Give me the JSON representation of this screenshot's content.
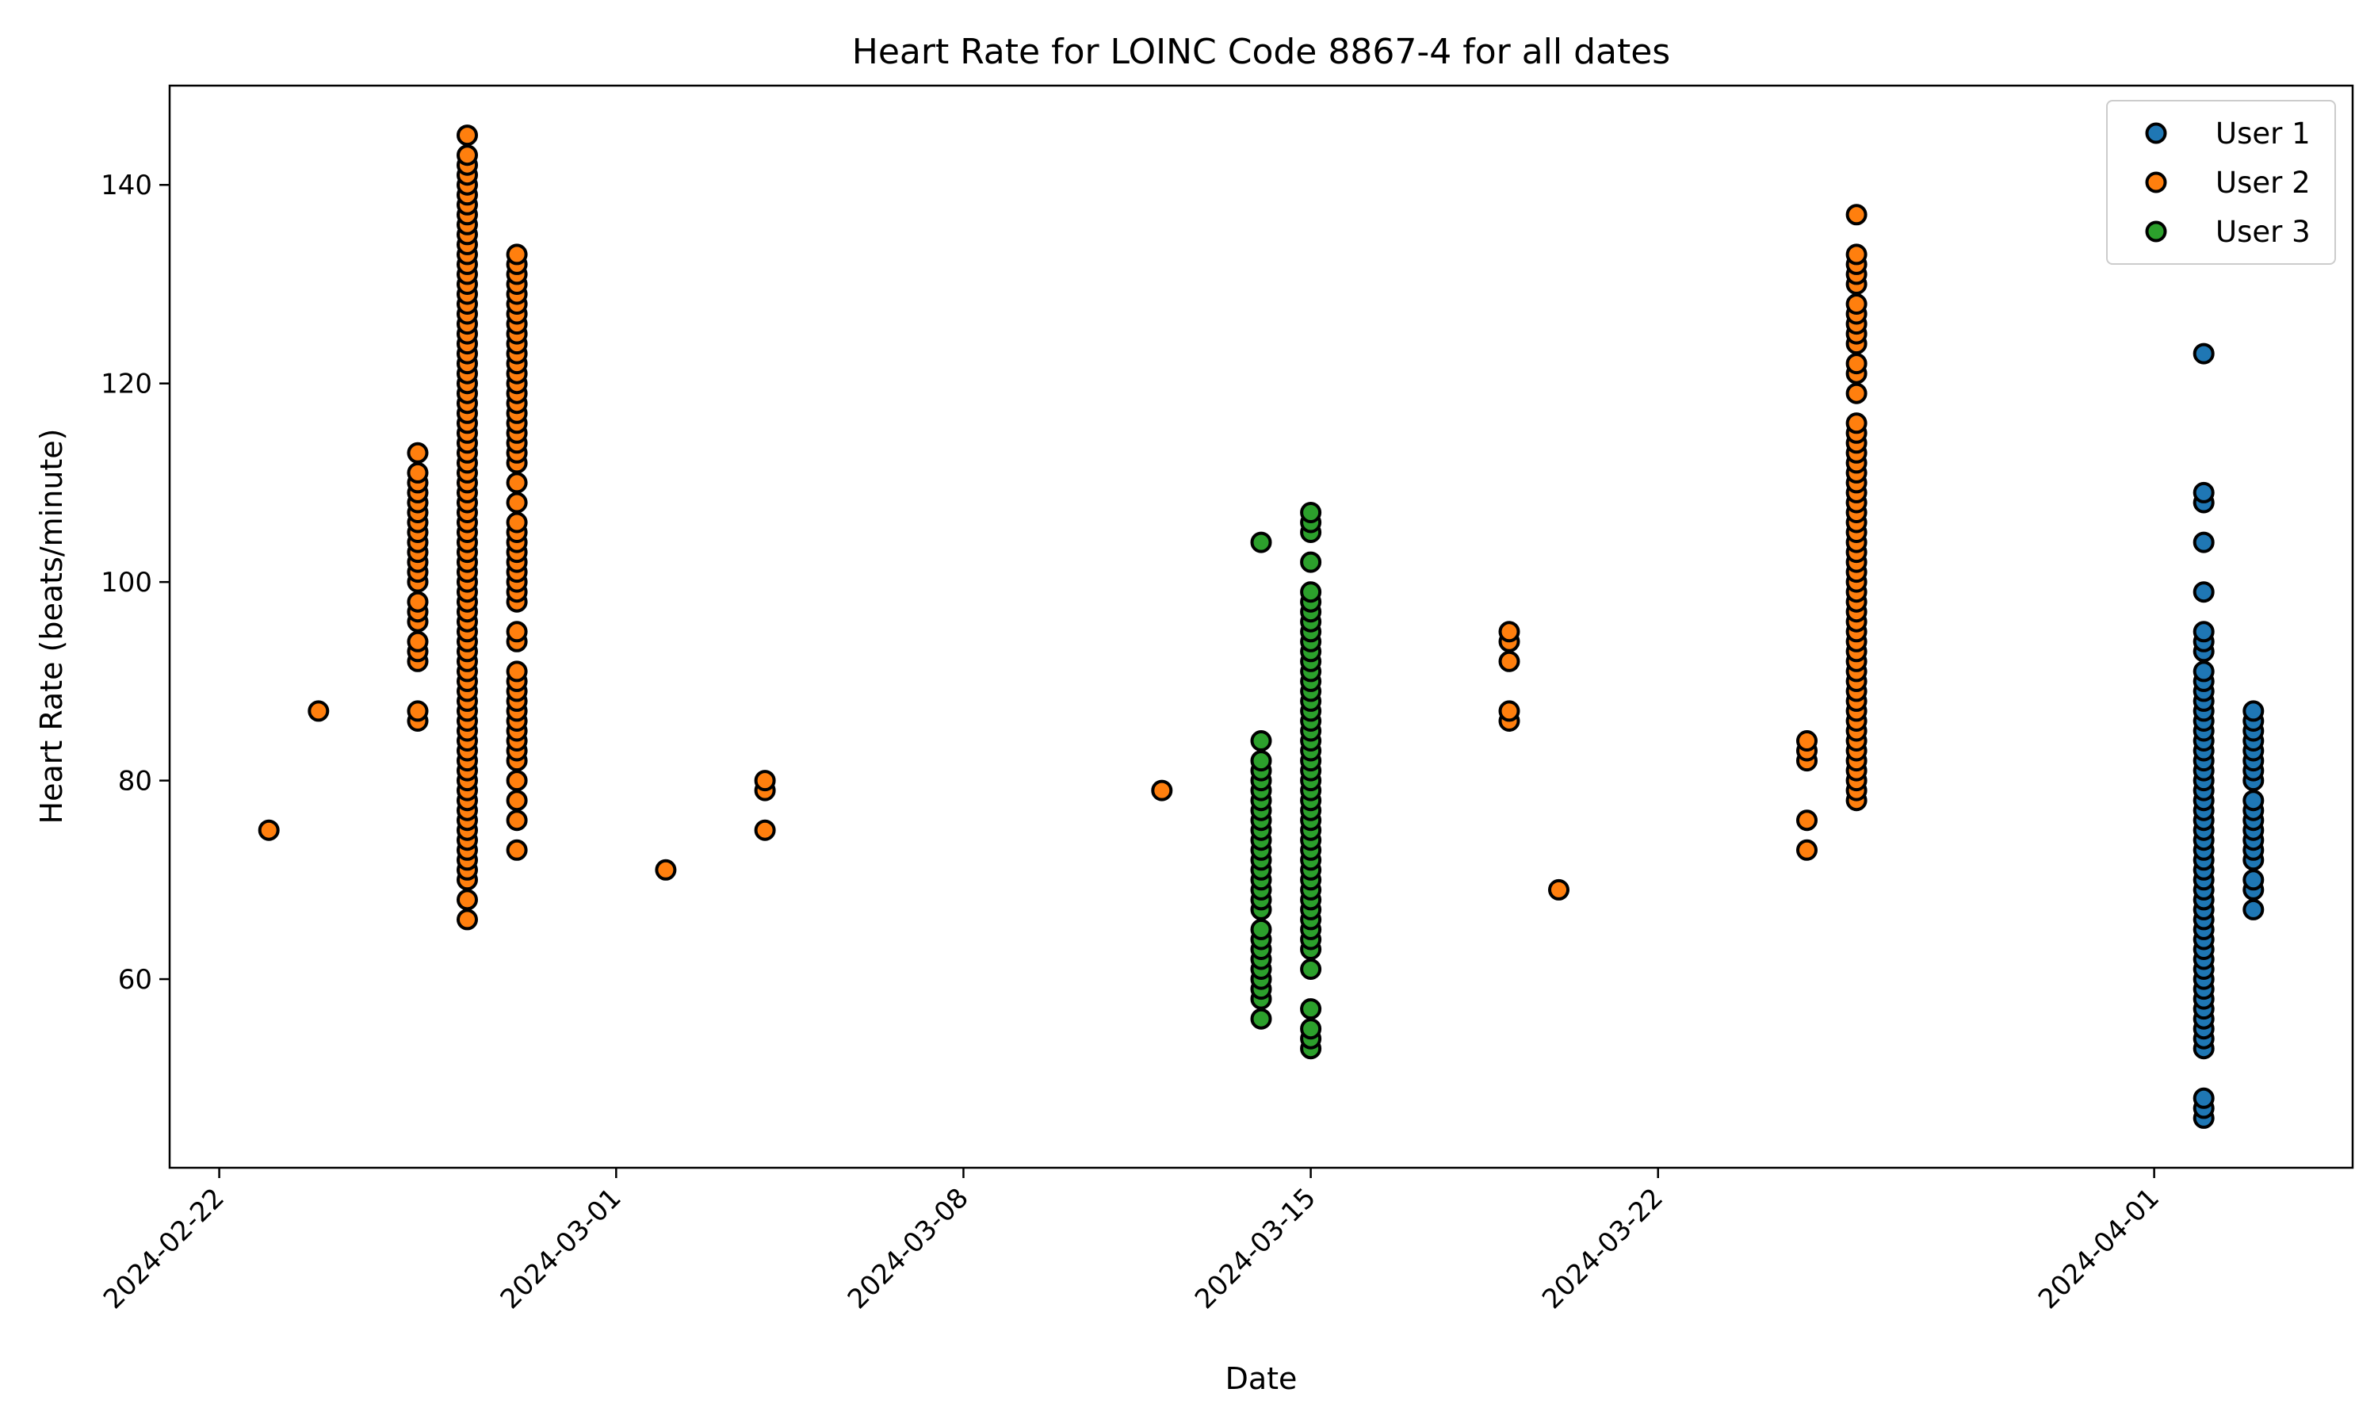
{
  "chart_data": {
    "type": "scatter",
    "title": "Heart Rate for LOINC Code 8867-4 for all dates",
    "xlabel": "Date",
    "ylabel": "Heart Rate (beats/minute)",
    "xlim": [
      "2024-02-21",
      "2024-04-05"
    ],
    "ylim": [
      41,
      150
    ],
    "x_ticks": [
      "2024-02-22",
      "2024-03-01",
      "2024-03-08",
      "2024-03-15",
      "2024-03-22",
      "2024-04-01"
    ],
    "y_ticks": [
      60,
      80,
      100,
      120,
      140
    ],
    "grid": false,
    "legend": "top-right",
    "series": [
      {
        "name": "User 1",
        "color": "#1f77b4",
        "points": [
          [
            "2024-04-02",
            [
              46,
              47,
              48,
              53,
              54,
              55,
              56,
              57,
              58,
              59,
              60,
              61,
              62,
              63,
              64,
              65,
              66,
              67,
              68,
              69,
              70,
              71,
              72,
              73,
              74,
              75,
              76,
              77,
              78,
              79,
              80,
              81,
              82,
              83,
              84,
              85,
              86,
              87,
              88,
              89,
              90,
              91,
              93,
              94,
              95,
              99,
              104,
              108,
              109,
              123
            ]
          ],
          [
            "2024-04-03",
            [
              67,
              69,
              70,
              72,
              73,
              74,
              75,
              76,
              77,
              78,
              80,
              81,
              82,
              83,
              84,
              85,
              86,
              87
            ]
          ]
        ]
      },
      {
        "name": "User 2",
        "color": "#ff7f0e",
        "points": [
          [
            "2024-02-23",
            [
              75
            ]
          ],
          [
            "2024-02-24",
            [
              87
            ]
          ],
          [
            "2024-02-26",
            [
              86,
              87,
              92,
              93,
              94,
              96,
              97,
              98,
              100,
              101,
              102,
              103,
              104,
              105,
              106,
              107,
              108,
              109,
              110,
              111,
              113
            ]
          ],
          [
            "2024-02-27",
            [
              66,
              68,
              70,
              71,
              72,
              73,
              74,
              75,
              76,
              77,
              78,
              79,
              80,
              81,
              82,
              83,
              84,
              85,
              86,
              87,
              88,
              89,
              90,
              91,
              92,
              93,
              94,
              95,
              96,
              97,
              98,
              99,
              100,
              101,
              102,
              103,
              104,
              105,
              106,
              107,
              108,
              109,
              110,
              111,
              112,
              113,
              114,
              115,
              116,
              117,
              118,
              119,
              120,
              121,
              122,
              123,
              124,
              125,
              126,
              127,
              128,
              129,
              130,
              131,
              132,
              133,
              134,
              135,
              136,
              137,
              138,
              139,
              140,
              141,
              142,
              143,
              145
            ]
          ],
          [
            "2024-02-28",
            [
              73,
              76,
              78,
              80,
              82,
              83,
              84,
              85,
              86,
              87,
              88,
              89,
              90,
              91,
              94,
              95,
              98,
              99,
              100,
              101,
              102,
              103,
              104,
              105,
              106,
              108,
              110,
              112,
              113,
              114,
              115,
              116,
              117,
              118,
              119,
              120,
              121,
              122,
              123,
              124,
              125,
              126,
              127,
              128,
              129,
              130,
              131,
              132,
              133
            ]
          ],
          [
            "2024-03-02",
            [
              71
            ]
          ],
          [
            "2024-03-04",
            [
              75,
              79,
              80
            ]
          ],
          [
            "2024-03-12",
            [
              79
            ]
          ],
          [
            "2024-03-19",
            [
              86,
              87,
              92,
              94,
              95
            ]
          ],
          [
            "2024-03-20",
            [
              69
            ]
          ],
          [
            "2024-03-25",
            [
              73,
              76,
              82,
              83,
              84
            ]
          ],
          [
            "2024-03-26",
            [
              78,
              79,
              80,
              81,
              82,
              83,
              84,
              85,
              86,
              87,
              88,
              89,
              90,
              91,
              92,
              93,
              94,
              95,
              96,
              97,
              98,
              99,
              100,
              101,
              102,
              103,
              104,
              105,
              106,
              107,
              108,
              109,
              110,
              111,
              112,
              113,
              114,
              115,
              116,
              119,
              121,
              122,
              124,
              125,
              126,
              127,
              128,
              130,
              131,
              132,
              133,
              137
            ]
          ]
        ]
      },
      {
        "name": "User 3",
        "color": "#2ca02c",
        "points": [
          [
            "2024-03-14",
            [
              56,
              58,
              59,
              60,
              61,
              62,
              63,
              64,
              65,
              67,
              68,
              69,
              70,
              71,
              72,
              73,
              74,
              75,
              76,
              77,
              78,
              79,
              80,
              81,
              82,
              84,
              104
            ]
          ],
          [
            "2024-03-15",
            [
              53,
              54,
              55,
              57,
              61,
              63,
              64,
              65,
              66,
              67,
              68,
              69,
              70,
              71,
              72,
              73,
              74,
              75,
              76,
              77,
              78,
              79,
              80,
              81,
              82,
              83,
              84,
              85,
              86,
              87,
              88,
              89,
              90,
              91,
              92,
              93,
              94,
              95,
              96,
              97,
              98,
              99,
              102,
              105,
              106,
              107
            ]
          ]
        ]
      }
    ]
  }
}
